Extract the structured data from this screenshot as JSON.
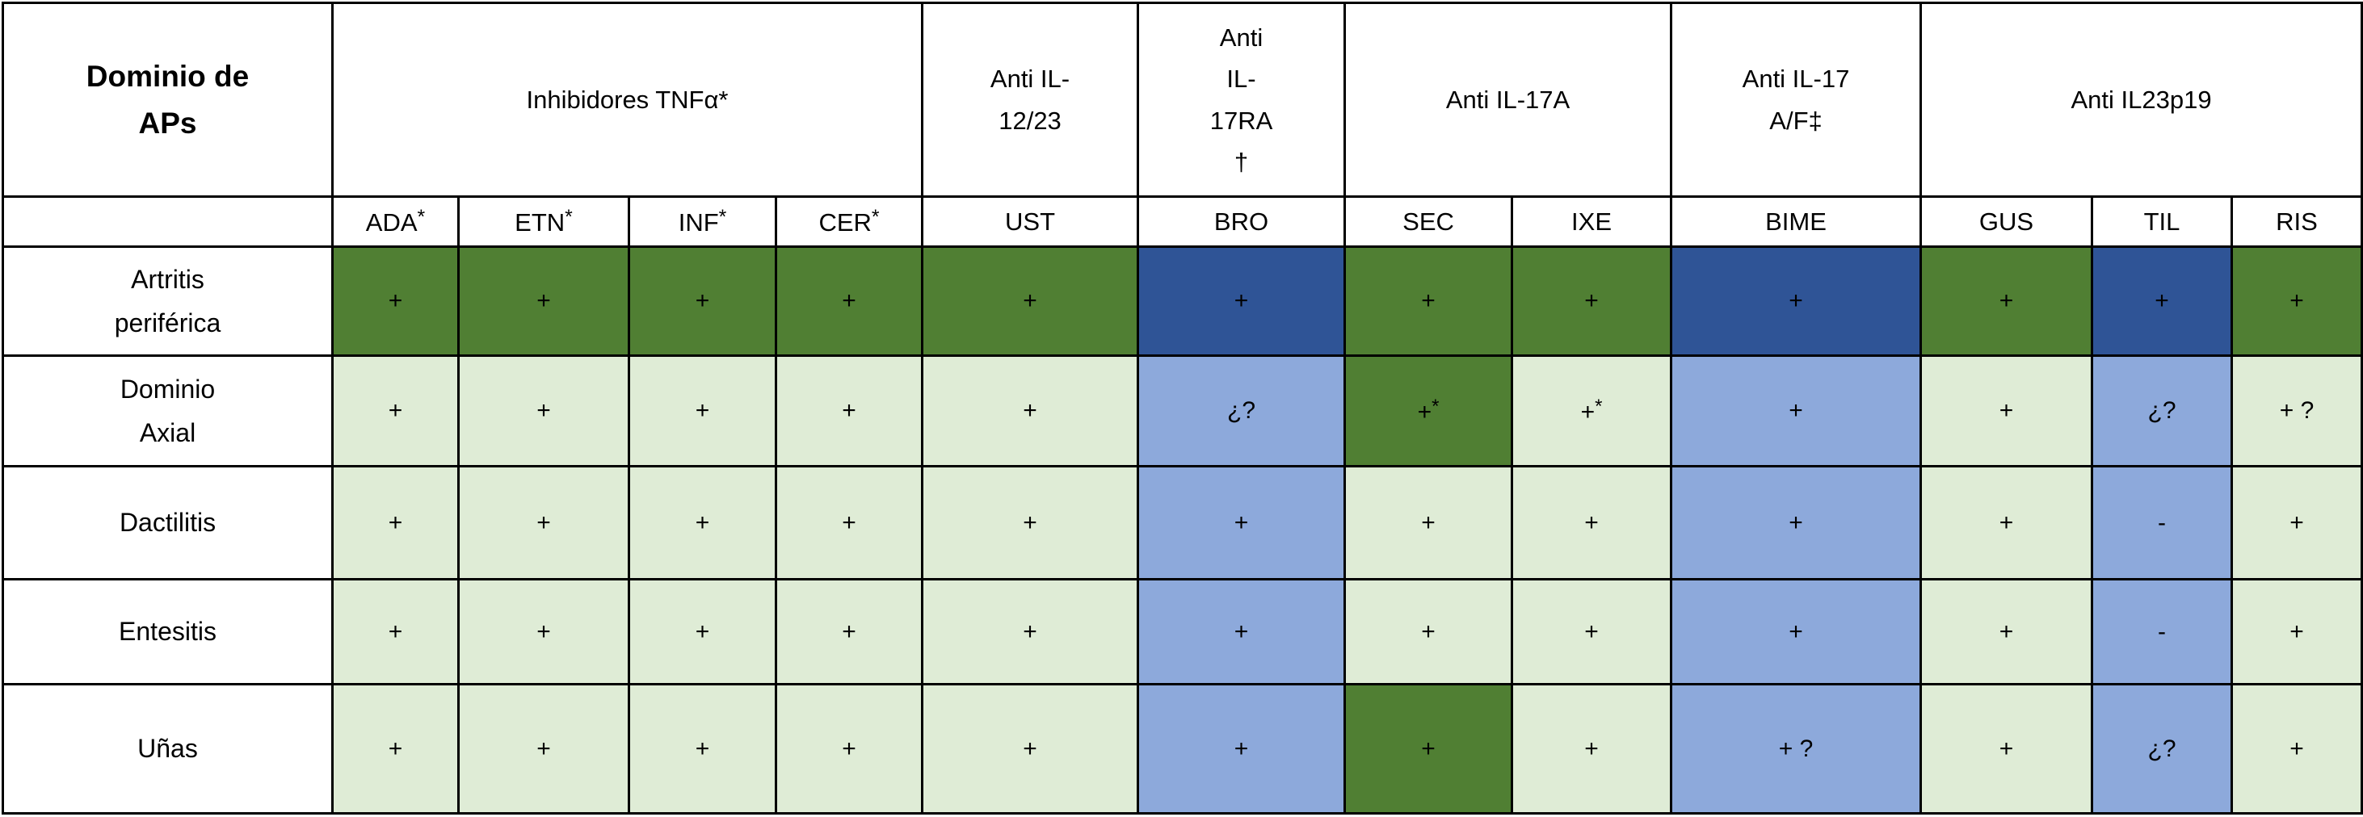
{
  "table_title_cell": "Dominio de\nAPs",
  "drug_class_groups": [
    {
      "label": "Inhibidores TNFα*",
      "colspan": 4
    },
    {
      "label": "Anti IL-\n12/23",
      "colspan": 1
    },
    {
      "label": "Anti\nIL-\n17RA\n†",
      "colspan": 1
    },
    {
      "label": "Anti IL-17A",
      "colspan": 2
    },
    {
      "label": "Anti IL-17\nA/F‡",
      "colspan": 1
    },
    {
      "label": "Anti IL23p19",
      "colspan": 3
    }
  ],
  "drug_columns": [
    {
      "abbr": "ADA",
      "sup": "*"
    },
    {
      "abbr": "ETN",
      "sup": "*"
    },
    {
      "abbr": "INF",
      "sup": "*"
    },
    {
      "abbr": "CER",
      "sup": "*"
    },
    {
      "abbr": "UST"
    },
    {
      "abbr": "BRO"
    },
    {
      "abbr": "SEC"
    },
    {
      "abbr": "IXE"
    },
    {
      "abbr": "BIME"
    },
    {
      "abbr": "GUS"
    },
    {
      "abbr": "TIL"
    },
    {
      "abbr": "RIS"
    }
  ],
  "legend_colors": {
    "dark_green": "#507f33",
    "light_green": "#dfecd6",
    "dark_blue": "#2f5496",
    "light_blue": "#8da9db"
  },
  "rows": [
    {
      "domain": "Artritis\nperiférica",
      "cells": [
        {
          "t": "+",
          "c": "dg"
        },
        {
          "t": "+",
          "c": "dg"
        },
        {
          "t": "+",
          "c": "dg"
        },
        {
          "t": "+",
          "c": "dg"
        },
        {
          "t": "+",
          "c": "dg"
        },
        {
          "t": "+",
          "c": "db"
        },
        {
          "t": "+",
          "c": "dg"
        },
        {
          "t": "+",
          "c": "dg"
        },
        {
          "t": "+",
          "c": "db"
        },
        {
          "t": "+",
          "c": "dg"
        },
        {
          "t": "+",
          "c": "db"
        },
        {
          "t": "+",
          "c": "dg"
        }
      ]
    },
    {
      "domain": "Dominio\nAxial",
      "cells": [
        {
          "t": "+",
          "c": "lg"
        },
        {
          "t": "+",
          "c": "lg"
        },
        {
          "t": "+",
          "c": "lg"
        },
        {
          "t": "+",
          "c": "lg"
        },
        {
          "t": "+",
          "c": "lg"
        },
        {
          "t": "¿?",
          "c": "lb"
        },
        {
          "t": "+",
          "s": "*",
          "c": "dg"
        },
        {
          "t": "+",
          "s": "*",
          "c": "lg"
        },
        {
          "t": "+",
          "c": "lb"
        },
        {
          "t": "+",
          "c": "lg"
        },
        {
          "t": "¿?",
          "c": "lb"
        },
        {
          "t": "+ ?",
          "c": "lg"
        }
      ]
    },
    {
      "domain": "Dactilitis",
      "cells": [
        {
          "t": "+",
          "c": "lg"
        },
        {
          "t": "+",
          "c": "lg"
        },
        {
          "t": "+",
          "c": "lg"
        },
        {
          "t": "+",
          "c": "lg"
        },
        {
          "t": "+",
          "c": "lg"
        },
        {
          "t": "+",
          "c": "lb"
        },
        {
          "t": "+",
          "c": "lg"
        },
        {
          "t": "+",
          "c": "lg"
        },
        {
          "t": "+",
          "c": "lb"
        },
        {
          "t": "+",
          "c": "lg"
        },
        {
          "t": "-",
          "c": "lb"
        },
        {
          "t": "+",
          "c": "lg"
        }
      ]
    },
    {
      "domain": "Entesitis",
      "cells": [
        {
          "t": "+",
          "c": "lg"
        },
        {
          "t": "+",
          "c": "lg"
        },
        {
          "t": "+",
          "c": "lg"
        },
        {
          "t": "+",
          "c": "lg"
        },
        {
          "t": "+",
          "c": "lg"
        },
        {
          "t": "+",
          "c": "lb"
        },
        {
          "t": "+",
          "c": "lg"
        },
        {
          "t": "+",
          "c": "lg"
        },
        {
          "t": "+",
          "c": "lb"
        },
        {
          "t": "+",
          "c": "lg"
        },
        {
          "t": "-",
          "c": "lb"
        },
        {
          "t": "+",
          "c": "lg"
        }
      ]
    },
    {
      "domain": "Uñas",
      "cells": [
        {
          "t": "+",
          "c": "lg"
        },
        {
          "t": "+",
          "c": "lg"
        },
        {
          "t": "+",
          "c": "lg"
        },
        {
          "t": "+",
          "c": "lg"
        },
        {
          "t": "+",
          "c": "lg"
        },
        {
          "t": "+",
          "c": "lb"
        },
        {
          "t": "+",
          "c": "dg"
        },
        {
          "t": "+",
          "c": "lg"
        },
        {
          "t": "+ ?",
          "c": "lb"
        },
        {
          "t": "+",
          "c": "lg"
        },
        {
          "t": "¿?",
          "c": "lb"
        },
        {
          "t": "+",
          "c": "lg"
        }
      ]
    }
  ]
}
